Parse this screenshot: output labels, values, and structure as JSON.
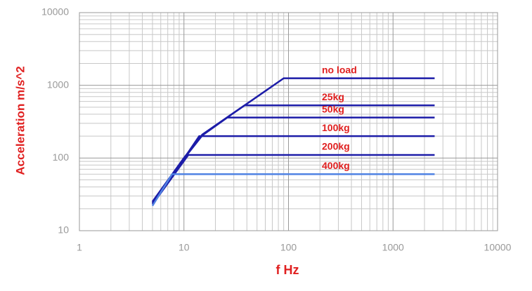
{
  "chart_data": {
    "type": "line",
    "xlabel": "f Hz",
    "ylabel": "Acceleration m/s^2",
    "log_x": true,
    "log_y": true,
    "grid": true,
    "xlim": [
      1,
      10000
    ],
    "ylim": [
      10,
      10000
    ],
    "xticks": [
      1,
      10,
      100,
      1000,
      10000
    ],
    "yticks": [
      10,
      100,
      1000,
      10000
    ],
    "series": [
      {
        "name": "no load",
        "color": "#1c1ca8",
        "x": [
          5,
          10,
          15,
          90,
          2500
        ],
        "values": [
          25,
          100,
          210,
          1250,
          1250
        ]
      },
      {
        "name": "25kg",
        "color": "#1c1ca8",
        "x": [
          5,
          10,
          15,
          38,
          2500
        ],
        "values": [
          25,
          100,
          210,
          530,
          530
        ]
      },
      {
        "name": "50kg",
        "color": "#1c1ca8",
        "x": [
          5,
          10,
          15,
          26,
          2500
        ],
        "values": [
          24,
          98,
          205,
          360,
          360
        ]
      },
      {
        "name": "100kg",
        "color": "#1c1ca8",
        "x": [
          5,
          10,
          14,
          2500
        ],
        "values": [
          24,
          98,
          200,
          200
        ]
      },
      {
        "name": "200kg",
        "color": "#1c1ca8",
        "x": [
          5,
          11,
          2500
        ],
        "values": [
          23,
          110,
          110
        ]
      },
      {
        "name": "400kg",
        "color": "#4f82e3",
        "x": [
          5,
          7.7,
          2500
        ],
        "values": [
          22,
          60,
          60
        ]
      }
    ],
    "label_color": "#e02020"
  }
}
